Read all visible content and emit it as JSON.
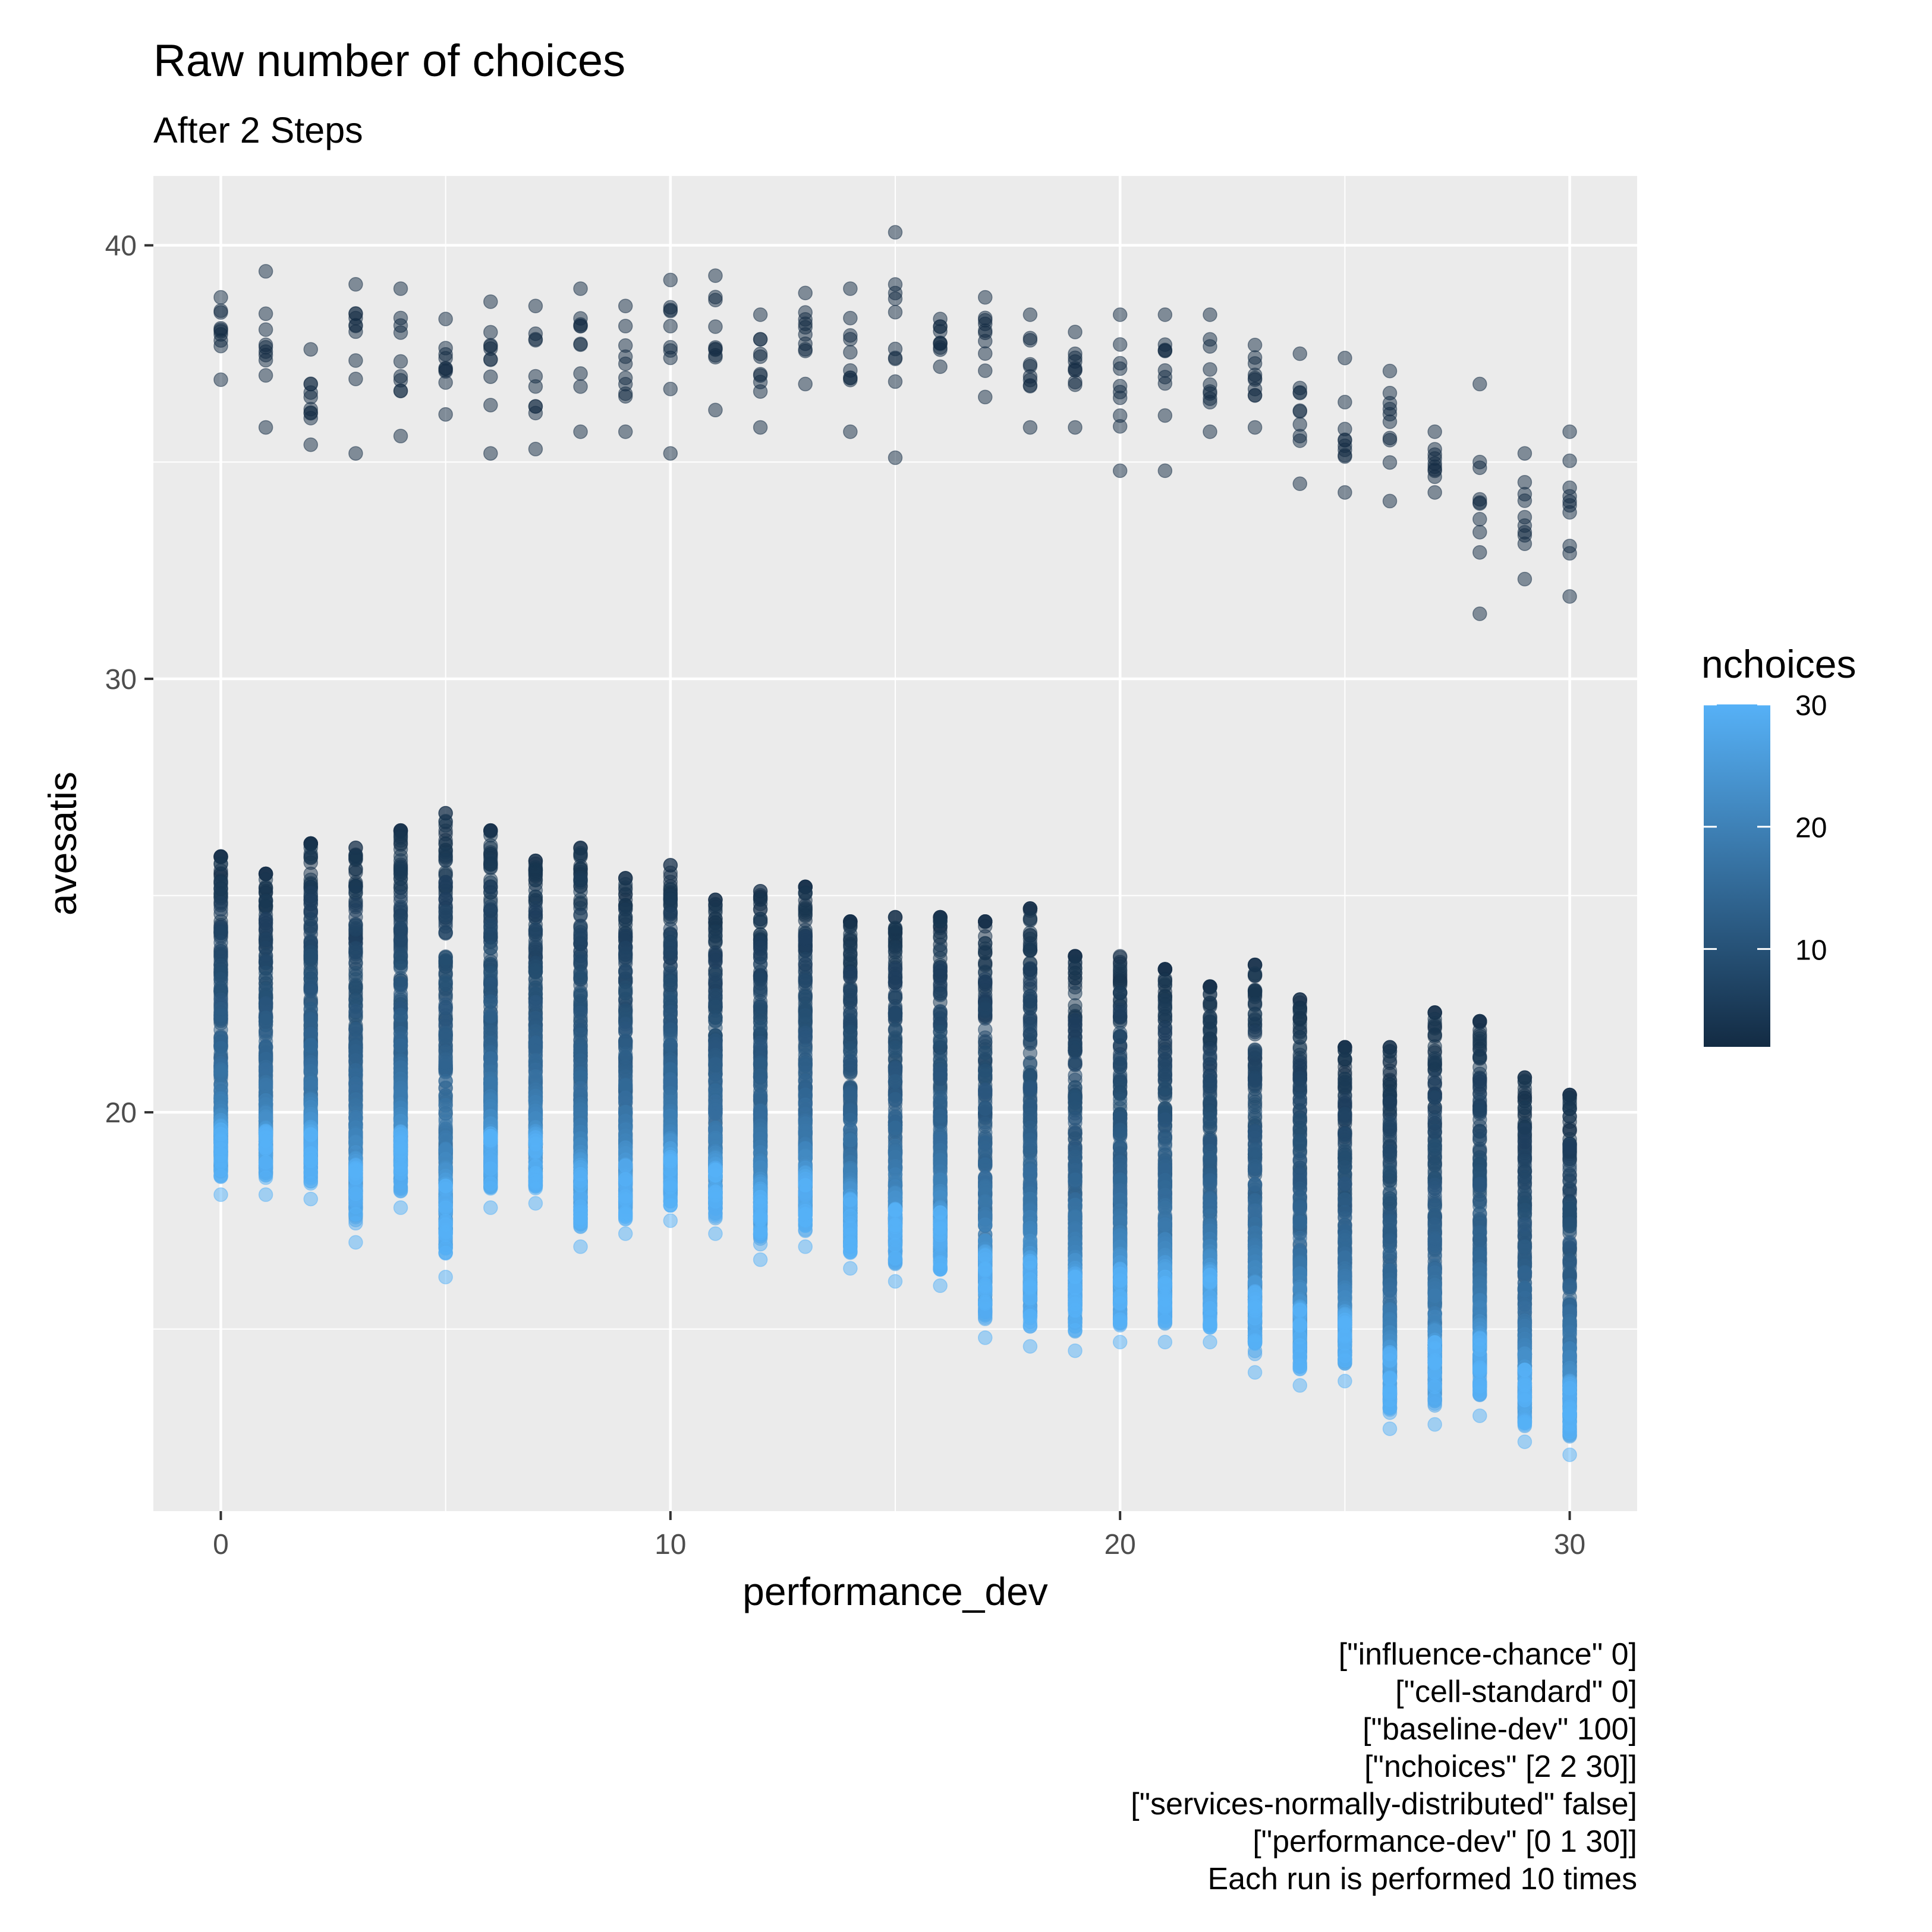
{
  "chart_data": {
    "type": "scatter",
    "title": "Raw number of choices",
    "subtitle": "After 2 Steps",
    "xlabel": "performance_dev",
    "ylabel": "avesatis",
    "xlim": [
      -1.5,
      31.5
    ],
    "ylim": [
      10.8,
      41.6
    ],
    "x_ticks": [
      0,
      10,
      20,
      30
    ],
    "y_ticks": [
      20,
      30,
      40
    ],
    "grid": true,
    "legend": {
      "title": "nchoices",
      "position": "right",
      "ticks": [
        10,
        20,
        30
      ],
      "range": [
        2,
        30
      ],
      "color_low": "#132B43",
      "color_high": "#56B1F7"
    },
    "nchoices_range": [
      2,
      30
    ],
    "runs_per_setting": 10,
    "upper_cluster": {
      "x": [
        0,
        1,
        2,
        3,
        4,
        5,
        6,
        7,
        8,
        9,
        10,
        11,
        12,
        13,
        14,
        15,
        16,
        17,
        18,
        19,
        20,
        21,
        22,
        23,
        24,
        25,
        26,
        27,
        28,
        29,
        30
      ],
      "nchoices": 2,
      "min": [
        36.9,
        35.8,
        35.4,
        35.2,
        35.6,
        36.1,
        35.2,
        35.3,
        35.7,
        35.7,
        35.2,
        36.2,
        35.8,
        36.8,
        35.7,
        35.1,
        37.2,
        36.5,
        35.8,
        35.8,
        34.8,
        34.8,
        35.7,
        35.8,
        34.5,
        34.3,
        34.1,
        34.3,
        31.5,
        32.3,
        31.9
      ],
      "max": [
        38.8,
        39.4,
        37.6,
        39.1,
        39.0,
        38.3,
        38.7,
        38.6,
        39.0,
        38.6,
        39.2,
        39.3,
        38.4,
        38.9,
        39.0,
        40.3,
        38.3,
        38.8,
        38.4,
        38.0,
        38.4,
        38.4,
        38.4,
        37.7,
        37.5,
        37.4,
        37.1,
        35.7,
        36.8,
        35.2,
        35.7
      ]
    },
    "lower_cluster": {
      "x": [
        0,
        1,
        2,
        3,
        4,
        5,
        6,
        7,
        8,
        9,
        10,
        11,
        12,
        13,
        14,
        15,
        16,
        17,
        18,
        19,
        20,
        21,
        22,
        23,
        24,
        25,
        26,
        27,
        28,
        29,
        30
      ],
      "nchoices_from": 3,
      "nchoices_to": 30,
      "min": [
        18.1,
        18.1,
        18.0,
        17.0,
        17.8,
        16.2,
        17.8,
        17.9,
        16.9,
        17.2,
        17.5,
        17.2,
        16.6,
        16.9,
        16.4,
        16.1,
        16.0,
        14.8,
        14.6,
        14.5,
        14.7,
        14.7,
        14.7,
        14.0,
        13.7,
        13.8,
        12.7,
        12.8,
        13.0,
        12.4,
        12.1
      ],
      "max": [
        25.9,
        25.5,
        26.2,
        26.1,
        26.5,
        26.9,
        26.5,
        25.8,
        26.1,
        25.4,
        25.7,
        24.9,
        25.1,
        25.2,
        24.4,
        24.5,
        24.5,
        24.4,
        24.7,
        23.6,
        23.6,
        23.3,
        22.9,
        23.4,
        22.6,
        21.5,
        21.5,
        22.3,
        22.1,
        20.8,
        20.4
      ]
    }
  },
  "annotations": [
    "[\"influence-chance\" 0]",
    "[\"cell-standard\" 0]",
    "[\"baseline-dev\" 100]",
    "[\"nchoices\" [2 2 30]]",
    "[\"services-normally-distributed\" false]",
    "[\"performance-dev\" [0 1 30]]",
    "Each run is performed 10 times"
  ]
}
